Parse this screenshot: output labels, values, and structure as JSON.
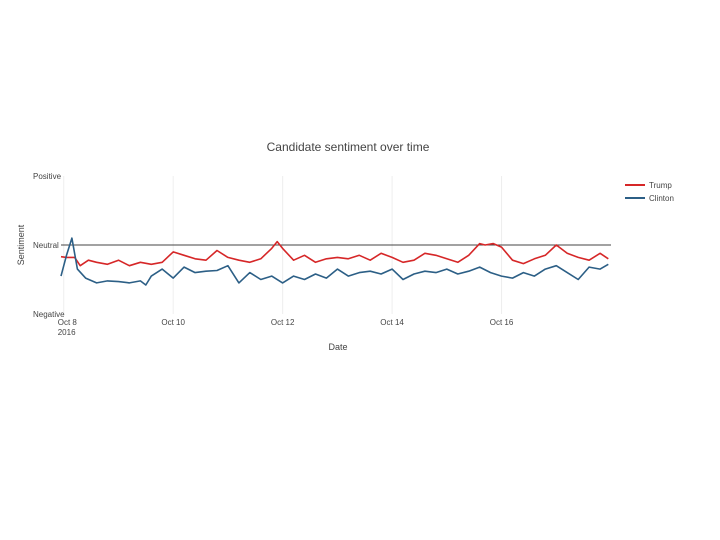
{
  "chart_data": {
    "type": "line",
    "title": "Candidate sentiment over time",
    "xlabel": "Date",
    "ylabel": "Sentiment",
    "x_tick_labels": [
      "Oct 8\n2016",
      "Oct 10",
      "Oct 12",
      "Oct 14",
      "Oct 16"
    ],
    "x_tick_values": [
      8,
      10,
      12,
      14,
      16
    ],
    "xlim": [
      7.95,
      18.0
    ],
    "y_tick_labels": [
      "Positive",
      "Neutral",
      "Negative"
    ],
    "y_tick_values": [
      1,
      0,
      -1
    ],
    "ylim": [
      -1,
      1
    ],
    "neutral_line": 0,
    "grid": true,
    "legend_position": "top-right",
    "series": [
      {
        "name": "Trump",
        "color": "#d62728",
        "x": [
          7.95,
          8.05,
          8.2,
          8.3,
          8.45,
          8.6,
          8.8,
          9.0,
          9.2,
          9.4,
          9.6,
          9.8,
          10.0,
          10.2,
          10.4,
          10.6,
          10.8,
          11.0,
          11.2,
          11.4,
          11.6,
          11.8,
          11.9,
          12.0,
          12.2,
          12.4,
          12.6,
          12.8,
          13.0,
          13.2,
          13.4,
          13.6,
          13.8,
          14.0,
          14.2,
          14.4,
          14.6,
          14.8,
          15.0,
          15.2,
          15.4,
          15.6,
          15.7,
          15.85,
          16.0,
          16.2,
          16.4,
          16.6,
          16.8,
          17.0,
          17.2,
          17.4,
          17.6,
          17.8,
          17.95
        ],
        "y": [
          -0.17,
          -0.18,
          -0.18,
          -0.3,
          -0.22,
          -0.25,
          -0.28,
          -0.22,
          -0.3,
          -0.25,
          -0.28,
          -0.25,
          -0.1,
          -0.15,
          -0.2,
          -0.22,
          -0.08,
          -0.18,
          -0.22,
          -0.25,
          -0.2,
          -0.05,
          0.05,
          -0.05,
          -0.22,
          -0.15,
          -0.25,
          -0.2,
          -0.18,
          -0.2,
          -0.15,
          -0.22,
          -0.12,
          -0.18,
          -0.25,
          -0.22,
          -0.12,
          -0.15,
          -0.2,
          -0.25,
          -0.15,
          0.02,
          0.0,
          0.02,
          -0.03,
          -0.22,
          -0.27,
          -0.2,
          -0.15,
          0.0,
          -0.12,
          -0.18,
          -0.22,
          -0.12,
          -0.2
        ]
      },
      {
        "name": "Clinton",
        "color": "#2c5f86",
        "x": [
          7.95,
          8.05,
          8.15,
          8.25,
          8.4,
          8.6,
          8.8,
          9.0,
          9.2,
          9.4,
          9.5,
          9.6,
          9.8,
          10.0,
          10.2,
          10.4,
          10.6,
          10.8,
          11.0,
          11.2,
          11.4,
          11.6,
          11.8,
          12.0,
          12.2,
          12.4,
          12.6,
          12.8,
          13.0,
          13.2,
          13.4,
          13.6,
          13.8,
          14.0,
          14.2,
          14.4,
          14.6,
          14.8,
          15.0,
          15.2,
          15.4,
          15.6,
          15.8,
          16.0,
          16.2,
          16.4,
          16.6,
          16.8,
          17.0,
          17.2,
          17.4,
          17.6,
          17.8,
          17.95
        ],
        "y": [
          -0.45,
          -0.15,
          0.1,
          -0.35,
          -0.48,
          -0.55,
          -0.52,
          -0.53,
          -0.55,
          -0.52,
          -0.58,
          -0.45,
          -0.35,
          -0.48,
          -0.32,
          -0.4,
          -0.38,
          -0.37,
          -0.3,
          -0.55,
          -0.4,
          -0.5,
          -0.45,
          -0.55,
          -0.45,
          -0.5,
          -0.42,
          -0.48,
          -0.35,
          -0.45,
          -0.4,
          -0.38,
          -0.42,
          -0.35,
          -0.5,
          -0.42,
          -0.38,
          -0.4,
          -0.35,
          -0.42,
          -0.38,
          -0.32,
          -0.4,
          -0.45,
          -0.48,
          -0.4,
          -0.45,
          -0.35,
          -0.3,
          -0.4,
          -0.5,
          -0.32,
          -0.35,
          -0.28
        ]
      }
    ]
  }
}
